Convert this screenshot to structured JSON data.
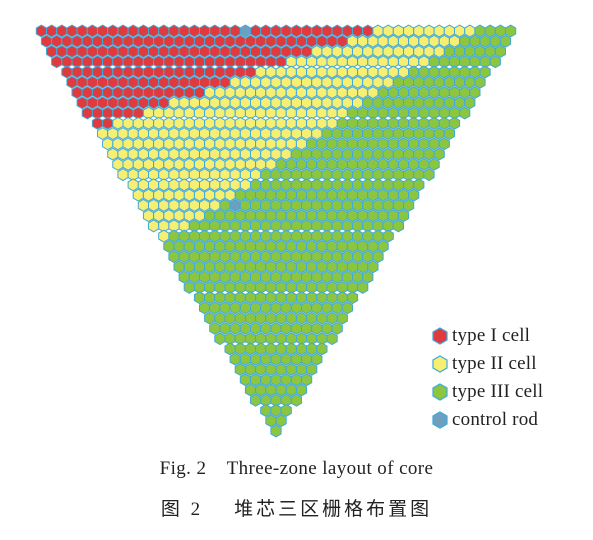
{
  "figure": {
    "colors": {
      "type_i": "#e03a3e",
      "type_ii": "#f7ef72",
      "type_iii": "#8cc63f",
      "control_rod": "#6e9fbf",
      "border": "#3fa9d8"
    },
    "legend": [
      {
        "key": "type_i",
        "label": "type I cell",
        "icon": "hexagon-red-icon"
      },
      {
        "key": "type_ii",
        "label": "type II cell",
        "icon": "hexagon-yellow-icon"
      },
      {
        "key": "type_iii",
        "label": "type III cell",
        "icon": "hexagon-green-icon"
      },
      {
        "key": "control_rod",
        "label": "control rod",
        "icon": "hexagon-blue-icon"
      }
    ],
    "caption_en": "Fig. 2    Three-zone layout of core",
    "caption_zh": "图 2    堆芯三区栅格布置图"
  }
}
